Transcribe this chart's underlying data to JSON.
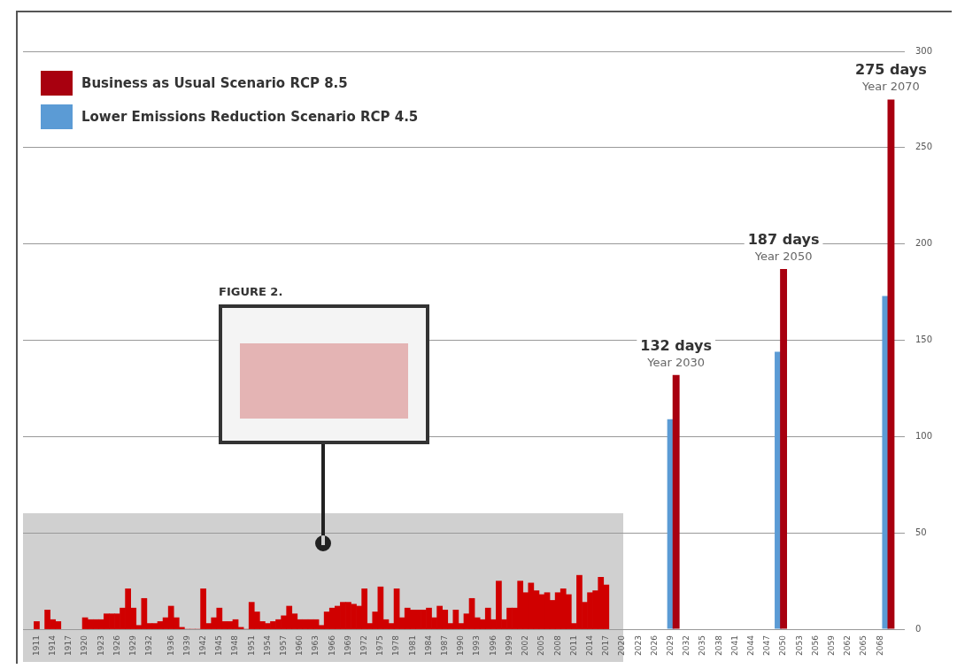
{
  "chart_data": {
    "type": "bar",
    "legend": "top left",
    "grid": "y",
    "xlim": [
      1910,
      2071
    ],
    "xticks": [
      1911,
      1914,
      1917,
      1920,
      1923,
      1926,
      1929,
      1932,
      1936,
      1939,
      1942,
      1945,
      1948,
      1951,
      1954,
      1957,
      1960,
      1963,
      1966,
      1969,
      1972,
      1975,
      1978,
      1981,
      1984,
      1987,
      1990,
      1993,
      1996,
      1999,
      2002,
      2005,
      2008,
      2011,
      2014,
      2017,
      2020,
      2023,
      2026,
      2029,
      2032,
      2035,
      2038,
      2041,
      2044,
      2047,
      2050,
      2053,
      2056,
      2059,
      2062,
      2065,
      2068
    ],
    "ylim": [
      0,
      300
    ],
    "yticks": [
      0,
      50,
      100,
      150,
      200,
      250,
      300
    ],
    "series": [
      {
        "color": "#d00000",
        "x": [
          1911,
          1912,
          1913,
          1914,
          1915,
          1916,
          1917,
          1918,
          1919,
          1920,
          1921,
          1922,
          1923,
          1924,
          1925,
          1926,
          1927,
          1928,
          1929,
          1930,
          1931,
          1932,
          1933,
          1934,
          1935,
          1936,
          1937,
          1938,
          1939,
          1940,
          1941,
          1942,
          1943,
          1944,
          1945,
          1946,
          1947,
          1948,
          1949,
          1950,
          1951,
          1952,
          1953,
          1954,
          1955,
          1956,
          1957,
          1958,
          1959,
          1960,
          1961,
          1962,
          1963,
          1964,
          1965,
          1966,
          1967,
          1968,
          1969,
          1970,
          1971,
          1972,
          1973,
          1974,
          1975,
          1976,
          1977,
          1978,
          1979,
          1980,
          1981,
          1982,
          1983,
          1984,
          1985,
          1986,
          1987,
          1988,
          1989,
          1990,
          1991,
          1992,
          1993,
          1994,
          1995,
          1996,
          1997,
          1998,
          1999,
          2000,
          2001,
          2002,
          2003,
          2004,
          2005,
          2006,
          2007,
          2008,
          2009,
          2010,
          2011,
          2012,
          2013,
          2014,
          2015,
          2016,
          2017
        ],
        "values": [
          4,
          null,
          10,
          5,
          4,
          null,
          null,
          null,
          null,
          6,
          5,
          5,
          5,
          8,
          8,
          8,
          11,
          21,
          11,
          2,
          16,
          3,
          3,
          4,
          6,
          12,
          6,
          1,
          0,
          0,
          0,
          21,
          3,
          6,
          11,
          4,
          4,
          5,
          1,
          0,
          14,
          9,
          4,
          3,
          4,
          5,
          7,
          12,
          8,
          5,
          5,
          5,
          5,
          2,
          9,
          11,
          12,
          14,
          14,
          13,
          12,
          21,
          3,
          9,
          22,
          5,
          3,
          21,
          6,
          11,
          10,
          10,
          10,
          11,
          6,
          12,
          10,
          3,
          10,
          3,
          8,
          16,
          6,
          5,
          11,
          5,
          25,
          5,
          11,
          11,
          25,
          19,
          24,
          20,
          18,
          19,
          15,
          19,
          21,
          18,
          3,
          28,
          14,
          19,
          20,
          27,
          23
        ]
      },
      {
        "name": "Business as Usual Scenario RCP 8.5",
        "color": "#a8000f",
        "x": [
          2030,
          2050,
          2070
        ],
        "values": [
          132,
          187,
          275
        ],
        "value_labels": [
          "132 days",
          "187 days",
          "275 days"
        ]
      },
      {
        "name": "Lower Emissions Reduction Scenario RCP 4.5",
        "color": "#5b9bd5",
        "x": [
          2029,
          2049,
          2069
        ],
        "values": [
          109,
          144,
          173
        ]
      }
    ],
    "annotations": [
      "FIGURE 2.",
      {
        "text": "Year 2030",
        "x": 2030,
        "y": 132
      },
      {
        "text": "Year 2050",
        "x": 2050,
        "y": 187
      },
      {
        "text": "Year 2070",
        "x": 2070,
        "y": 275
      }
    ]
  }
}
